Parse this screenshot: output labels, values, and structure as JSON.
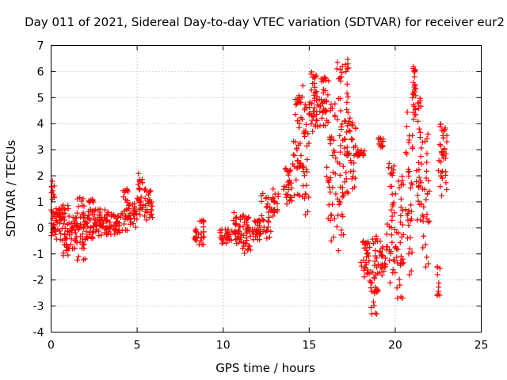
{
  "chart_data": {
    "type": "scatter",
    "title": "Day 011 of 2021, Sidereal Day-to-day VTEC variation (SDTVAR) for receiver eur2",
    "xlabel": "GPS time / hours",
    "ylabel": "SDTVAR / TECUs",
    "xlim": [
      0,
      25
    ],
    "ylim": [
      -4,
      7
    ],
    "xticks": [
      0,
      5,
      10,
      15,
      20,
      25
    ],
    "yticks": [
      -4,
      -3,
      -2,
      -1,
      0,
      1,
      2,
      3,
      4,
      5,
      6,
      7
    ],
    "xtick_labels": [
      "0",
      "5",
      "10",
      "15",
      "20",
      "25"
    ],
    "ytick_labels": [
      "-4",
      "-3",
      "-2",
      "-1",
      "0",
      "1",
      "2",
      "3",
      "4",
      "5",
      "6",
      "7"
    ],
    "grid": true,
    "marker": "+",
    "marker_color": "#ff0000",
    "series": [
      {
        "name": "SDTVAR",
        "segments": [
          {
            "t0": 0.0,
            "t1": 0.25,
            "vmin": -0.3,
            "vmax": 1.9,
            "n": 28
          },
          {
            "t0": 0.25,
            "t1": 0.6,
            "vmin": -0.5,
            "vmax": 0.8,
            "n": 26
          },
          {
            "t0": 0.6,
            "t1": 1.0,
            "vmin": -1.2,
            "vmax": 0.9,
            "n": 34
          },
          {
            "t0": 1.0,
            "t1": 1.5,
            "vmin": -0.8,
            "vmax": 0.5,
            "n": 32
          },
          {
            "t0": 1.5,
            "t1": 2.0,
            "vmin": -1.3,
            "vmax": 1.3,
            "n": 40
          },
          {
            "t0": 2.0,
            "t1": 2.5,
            "vmin": -0.5,
            "vmax": 1.1,
            "n": 38
          },
          {
            "t0": 2.5,
            "t1": 3.0,
            "vmin": -0.3,
            "vmax": 0.8,
            "n": 30
          },
          {
            "t0": 3.0,
            "t1": 3.5,
            "vmin": -0.4,
            "vmax": 0.7,
            "n": 30
          },
          {
            "t0": 3.5,
            "t1": 4.0,
            "vmin": -0.3,
            "vmax": 0.5,
            "n": 26
          },
          {
            "t0": 4.0,
            "t1": 4.5,
            "vmin": -0.2,
            "vmax": 1.5,
            "n": 28
          },
          {
            "t0": 4.5,
            "t1": 5.0,
            "vmin": 0.0,
            "vmax": 1.0,
            "n": 24
          },
          {
            "t0": 5.0,
            "t1": 5.3,
            "vmin": 0.5,
            "vmax": 2.1,
            "n": 24
          },
          {
            "t0": 5.3,
            "t1": 5.9,
            "vmin": 0.2,
            "vmax": 1.5,
            "n": 30
          },
          {
            "t0": 8.3,
            "t1": 8.5,
            "vmin": -0.6,
            "vmax": 0.0,
            "n": 10
          },
          {
            "t0": 8.5,
            "t1": 8.9,
            "vmin": -0.7,
            "vmax": 0.3,
            "n": 18
          },
          {
            "t0": 9.8,
            "t1": 10.5,
            "vmin": -0.7,
            "vmax": 0.0,
            "n": 26
          },
          {
            "t0": 10.5,
            "t1": 11.0,
            "vmin": -0.6,
            "vmax": 0.6,
            "n": 30
          },
          {
            "t0": 11.0,
            "t1": 11.6,
            "vmin": -1.1,
            "vmax": 0.5,
            "n": 36
          },
          {
            "t0": 11.6,
            "t1": 12.2,
            "vmin": -0.5,
            "vmax": 0.3,
            "n": 30
          },
          {
            "t0": 12.2,
            "t1": 12.8,
            "vmin": -0.4,
            "vmax": 1.5,
            "n": 28
          },
          {
            "t0": 12.8,
            "t1": 13.2,
            "vmin": 0.2,
            "vmax": 1.5,
            "n": 18
          },
          {
            "t0": 13.5,
            "t1": 14.0,
            "vmin": 0.8,
            "vmax": 2.3,
            "n": 28
          },
          {
            "t0": 14.0,
            "t1": 14.5,
            "vmin": 1.0,
            "vmax": 5.1,
            "n": 36
          },
          {
            "t0": 14.5,
            "t1": 15.0,
            "vmin": 0.5,
            "vmax": 5.5,
            "n": 40
          },
          {
            "t0": 15.0,
            "t1": 15.5,
            "vmin": 3.5,
            "vmax": 6.0,
            "n": 40
          },
          {
            "t0": 15.5,
            "t1": 16.0,
            "vmin": 3.8,
            "vmax": 5.8,
            "n": 32
          },
          {
            "t0": 16.0,
            "t1": 16.5,
            "vmin": -0.5,
            "vmax": 5.7,
            "n": 40
          },
          {
            "t0": 16.5,
            "t1": 17.0,
            "vmin": -1.5,
            "vmax": 6.4,
            "n": 44
          },
          {
            "t0": 17.0,
            "t1": 17.3,
            "vmin": 1.0,
            "vmax": 6.5,
            "n": 32
          },
          {
            "t0": 17.3,
            "t1": 17.7,
            "vmin": 1.5,
            "vmax": 4.5,
            "n": 26
          },
          {
            "t0": 17.7,
            "t1": 18.2,
            "vmin": 2.7,
            "vmax": 3.0,
            "n": 18
          },
          {
            "t0": 18.0,
            "t1": 18.5,
            "vmin": -2.0,
            "vmax": -0.5,
            "n": 30
          },
          {
            "t0": 18.5,
            "t1": 19.0,
            "vmin": -3.5,
            "vmax": -0.3,
            "n": 38
          },
          {
            "t0": 19.0,
            "t1": 19.3,
            "vmin": 3.1,
            "vmax": 3.5,
            "n": 12
          },
          {
            "t0": 19.0,
            "t1": 19.5,
            "vmin": -2.0,
            "vmax": -0.5,
            "n": 24
          },
          {
            "t0": 19.5,
            "t1": 20.0,
            "vmin": -2.5,
            "vmax": 2.5,
            "n": 38
          },
          {
            "t0": 20.0,
            "t1": 20.5,
            "vmin": -3.0,
            "vmax": 2.0,
            "n": 36
          },
          {
            "t0": 20.6,
            "t1": 21.0,
            "vmin": -1.8,
            "vmax": 4.5,
            "n": 34
          },
          {
            "t0": 21.0,
            "t1": 21.2,
            "vmin": 4.0,
            "vmax": 6.2,
            "n": 26
          },
          {
            "t0": 21.2,
            "t1": 21.5,
            "vmin": 0.0,
            "vmax": 5.0,
            "n": 26
          },
          {
            "t0": 21.5,
            "t1": 22.0,
            "vmin": -1.5,
            "vmax": 3.8,
            "n": 32
          },
          {
            "t0": 22.3,
            "t1": 22.6,
            "vmin": -2.8,
            "vmax": -1.2,
            "n": 10
          },
          {
            "t0": 22.5,
            "t1": 23.0,
            "vmin": 1.0,
            "vmax": 4.0,
            "n": 38
          }
        ]
      }
    ]
  }
}
